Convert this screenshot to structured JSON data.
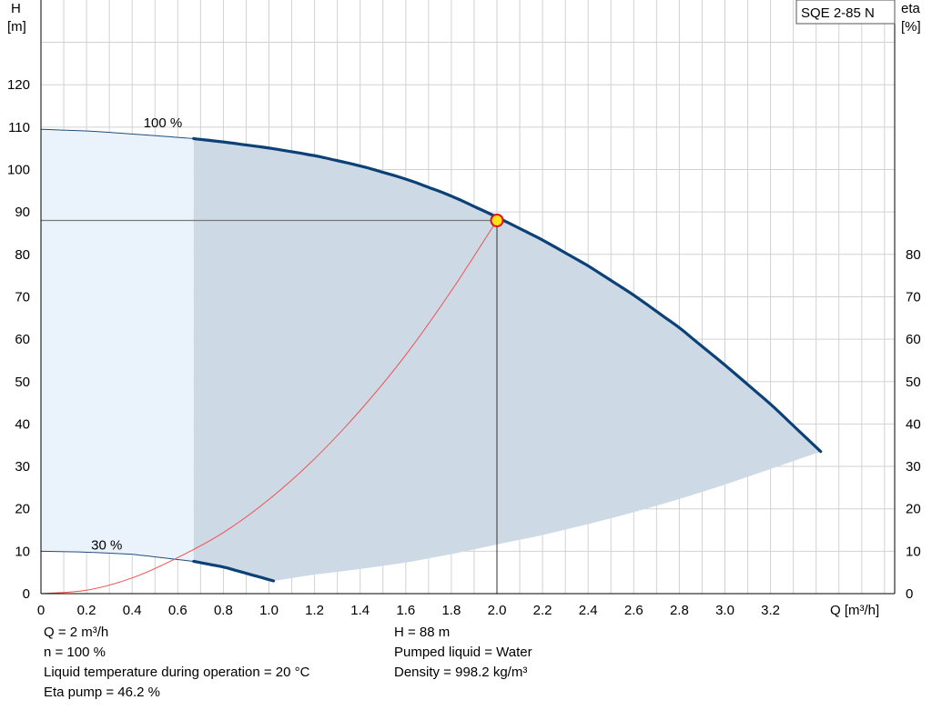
{
  "chart_data": {
    "type": "line",
    "title": "SQE 2-85 N",
    "xlabel": "Q [m³/h]",
    "ylabel_left": [
      "H",
      "[m]"
    ],
    "ylabel_right": [
      "eta",
      "[%]"
    ],
    "xlim": [
      0,
      3.7
    ],
    "ylim": [
      0,
      130
    ],
    "x_ticks": [
      0,
      0.2,
      0.4,
      0.6,
      0.8,
      1.0,
      1.2,
      1.4,
      1.6,
      1.8,
      2.0,
      2.2,
      2.4,
      2.6,
      2.8,
      3.0,
      3.2
    ],
    "x_tick_labels": [
      "0",
      "0.2",
      "0.4",
      "0.6",
      "0.8",
      "1.0",
      "1.2",
      "1.4",
      "1.6",
      "1.8",
      "2.0",
      "2.2",
      "2.4",
      "2.6",
      "2.8",
      "3.0",
      "3.2"
    ],
    "y_left_ticks": [
      0,
      10,
      20,
      30,
      40,
      50,
      60,
      70,
      80,
      90,
      100,
      110,
      120
    ],
    "y_right_ticks": [
      0,
      10,
      20,
      30,
      40,
      50,
      60,
      70,
      80
    ],
    "grid": true,
    "curve_labels": [
      {
        "text": "100 %",
        "x": 0.45,
        "y": 111
      },
      {
        "text": "30 %",
        "x": 0.22,
        "y": 11.5
      }
    ],
    "series": [
      {
        "name": "100 %",
        "kind": "pump curve",
        "dashed_range": [
          0,
          0.67
        ],
        "x": [
          0,
          0.2,
          0.4,
          0.67,
          0.8,
          1.0,
          1.2,
          1.4,
          1.6,
          1.8,
          2.0,
          2.2,
          2.4,
          2.6,
          2.8,
          3.0,
          3.2,
          3.42
        ],
        "y": [
          109.5,
          109.1,
          108.4,
          107.3,
          106.5,
          105.1,
          103.3,
          100.9,
          97.8,
          93.8,
          88.8,
          83.4,
          77.3,
          70.4,
          62.7,
          53.9,
          44.7,
          33.5
        ]
      },
      {
        "name": "30 %",
        "kind": "pump curve",
        "dashed_range": [
          0,
          0.67
        ],
        "x": [
          0,
          0.2,
          0.4,
          0.67,
          0.8,
          1.02
        ],
        "y": [
          10,
          9.8,
          9.3,
          7.6,
          6.3,
          3
        ]
      },
      {
        "kind": "system curve",
        "x": [
          0,
          0.2,
          0.4,
          0.6,
          0.8,
          1.0,
          1.2,
          1.4,
          1.6,
          1.8,
          2.0
        ],
        "y": [
          0,
          0.8,
          3.7,
          8.5,
          14.4,
          22.2,
          31.8,
          43.2,
          56.3,
          71.4,
          88
        ]
      }
    ],
    "efficiency_area": {
      "lower_x": [
        1.02,
        1.2,
        1.4,
        1.6,
        1.8,
        2.0,
        2.2,
        2.4,
        2.6,
        2.8,
        3.0,
        3.2,
        3.42
      ],
      "lower_y": [
        3,
        4.5,
        5.8,
        7.3,
        9.3,
        11.6,
        13.8,
        16.4,
        19.2,
        22.3,
        25.7,
        29.4,
        33.5
      ]
    },
    "duty_point": {
      "x": 2.0,
      "y": 88
    }
  },
  "info": {
    "left": [
      "Q = 2 m³/h",
      "n = 100 %",
      "Liquid temperature during operation = 20 °C",
      "Eta pump = 46.2 %"
    ],
    "right": [
      "H = 88 m",
      "Pumped liquid = Water",
      "Density = 998.2 kg/m³"
    ]
  }
}
